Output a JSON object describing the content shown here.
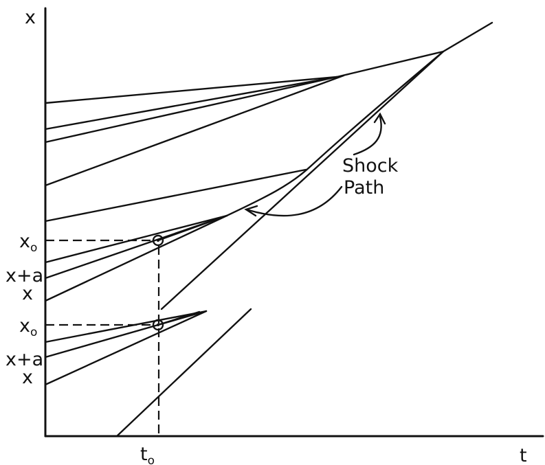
{
  "axes": {
    "vertical_label": "x",
    "horizontal_label": "t",
    "time_marker": {
      "base": "t",
      "subscript": "o"
    }
  },
  "upper_group_labels": {
    "x_zero": {
      "base": "x",
      "subscript": "o"
    },
    "x_plus_a": "x+a",
    "x": "x"
  },
  "lower_group_labels": {
    "x_zero": {
      "base": "x",
      "subscript": "o"
    },
    "x_plus_a": "x+a",
    "x": "x"
  },
  "annotation": {
    "line1": "Shock",
    "line2": "Path"
  }
}
